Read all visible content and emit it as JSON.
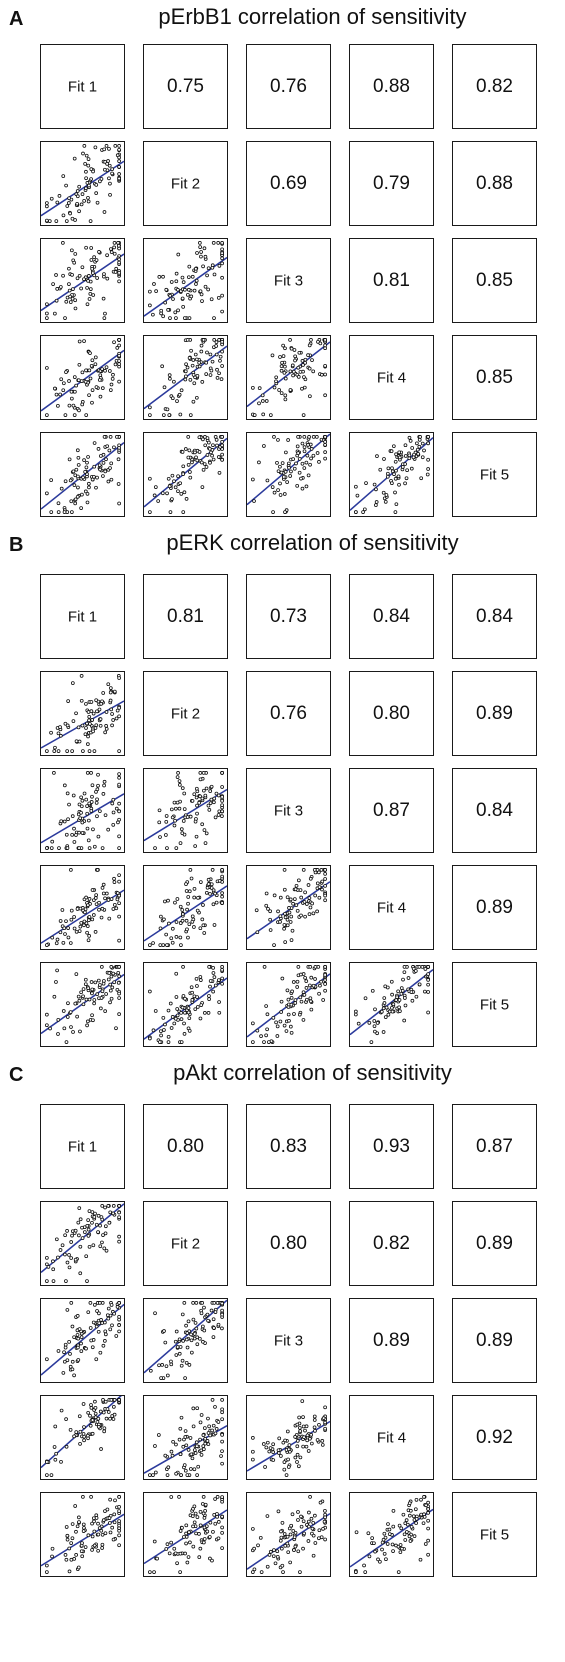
{
  "panels": [
    {
      "letter": "A",
      "title": "pErbB1 correlation of sensitivity",
      "fit_labels": [
        "Fit 1",
        "Fit 2",
        "Fit 3",
        "Fit 4",
        "Fit 5"
      ],
      "correlations": [
        [
          "",
          "0.75",
          "0.76",
          "0.88",
          "0.82"
        ],
        [
          "",
          "",
          "0.69",
          "0.79",
          "0.88"
        ],
        [
          "",
          "",
          "",
          "0.81",
          "0.85"
        ],
        [
          "",
          "",
          "",
          "",
          "0.85"
        ],
        [
          "",
          "",
          "",
          "",
          ""
        ]
      ]
    },
    {
      "letter": "B",
      "title": "pERK correlation of sensitivity",
      "fit_labels": [
        "Fit 1",
        "Fit 2",
        "Fit 3",
        "Fit 4",
        "Fit 5"
      ],
      "correlations": [
        [
          "",
          "0.81",
          "0.73",
          "0.84",
          "0.84"
        ],
        [
          "",
          "",
          "0.76",
          "0.80",
          "0.89"
        ],
        [
          "",
          "",
          "",
          "0.87",
          "0.84"
        ],
        [
          "",
          "",
          "",
          "",
          "0.89"
        ],
        [
          "",
          "",
          "",
          "",
          ""
        ]
      ]
    },
    {
      "letter": "C",
      "title": "pAkt correlation of sensitivity",
      "fit_labels": [
        "Fit 1",
        "Fit 2",
        "Fit 3",
        "Fit 4",
        "Fit 5"
      ],
      "correlations": [
        [
          "",
          "0.80",
          "0.83",
          "0.93",
          "0.87"
        ],
        [
          "",
          "",
          "0.80",
          "0.82",
          "0.89"
        ],
        [
          "",
          "",
          "",
          "0.89",
          "0.89"
        ],
        [
          "",
          "",
          "",
          "",
          "0.92"
        ],
        [
          "",
          "",
          "",
          "",
          ""
        ]
      ]
    }
  ],
  "chart_data": [
    {
      "type": "scatter",
      "title": "pErbB1 correlation of sensitivity",
      "series": [
        "Fit 1",
        "Fit 2",
        "Fit 3",
        "Fit 4",
        "Fit 5"
      ],
      "pairwise_correlation": [
        [
          null,
          0.75,
          0.76,
          0.88,
          0.82
        ],
        [
          0.75,
          null,
          0.69,
          0.79,
          0.88
        ],
        [
          0.76,
          0.69,
          null,
          0.81,
          0.85
        ],
        [
          0.88,
          0.79,
          0.81,
          null,
          0.85
        ],
        [
          0.82,
          0.88,
          0.85,
          0.85,
          null
        ]
      ],
      "lower_triangle": "scatter plots with linear fit line",
      "fit_line_color": "#2b3a9c",
      "point_color": "#111111"
    },
    {
      "type": "scatter",
      "title": "pERK correlation of sensitivity",
      "series": [
        "Fit 1",
        "Fit 2",
        "Fit 3",
        "Fit 4",
        "Fit 5"
      ],
      "pairwise_correlation": [
        [
          null,
          0.81,
          0.73,
          0.84,
          0.84
        ],
        [
          0.81,
          null,
          0.76,
          0.8,
          0.89
        ],
        [
          0.73,
          0.76,
          null,
          0.87,
          0.84
        ],
        [
          0.84,
          0.8,
          0.87,
          null,
          0.89
        ],
        [
          0.84,
          0.89,
          0.84,
          0.89,
          null
        ]
      ],
      "lower_triangle": "scatter plots with linear fit line",
      "fit_line_color": "#2b3a9c",
      "point_color": "#111111"
    },
    {
      "type": "scatter",
      "title": "pAkt correlation of sensitivity",
      "series": [
        "Fit 1",
        "Fit 2",
        "Fit 3",
        "Fit 4",
        "Fit 5"
      ],
      "pairwise_correlation": [
        [
          null,
          0.8,
          0.83,
          0.93,
          0.87
        ],
        [
          0.8,
          null,
          0.8,
          0.82,
          0.89
        ],
        [
          0.83,
          0.8,
          null,
          0.89,
          0.89
        ],
        [
          0.93,
          0.82,
          0.89,
          null,
          0.92
        ],
        [
          0.87,
          0.89,
          0.89,
          0.92,
          null
        ]
      ],
      "lower_triangle": "scatter plots with linear fit line",
      "fit_line_color": "#2b3a9c",
      "point_color": "#111111"
    }
  ]
}
